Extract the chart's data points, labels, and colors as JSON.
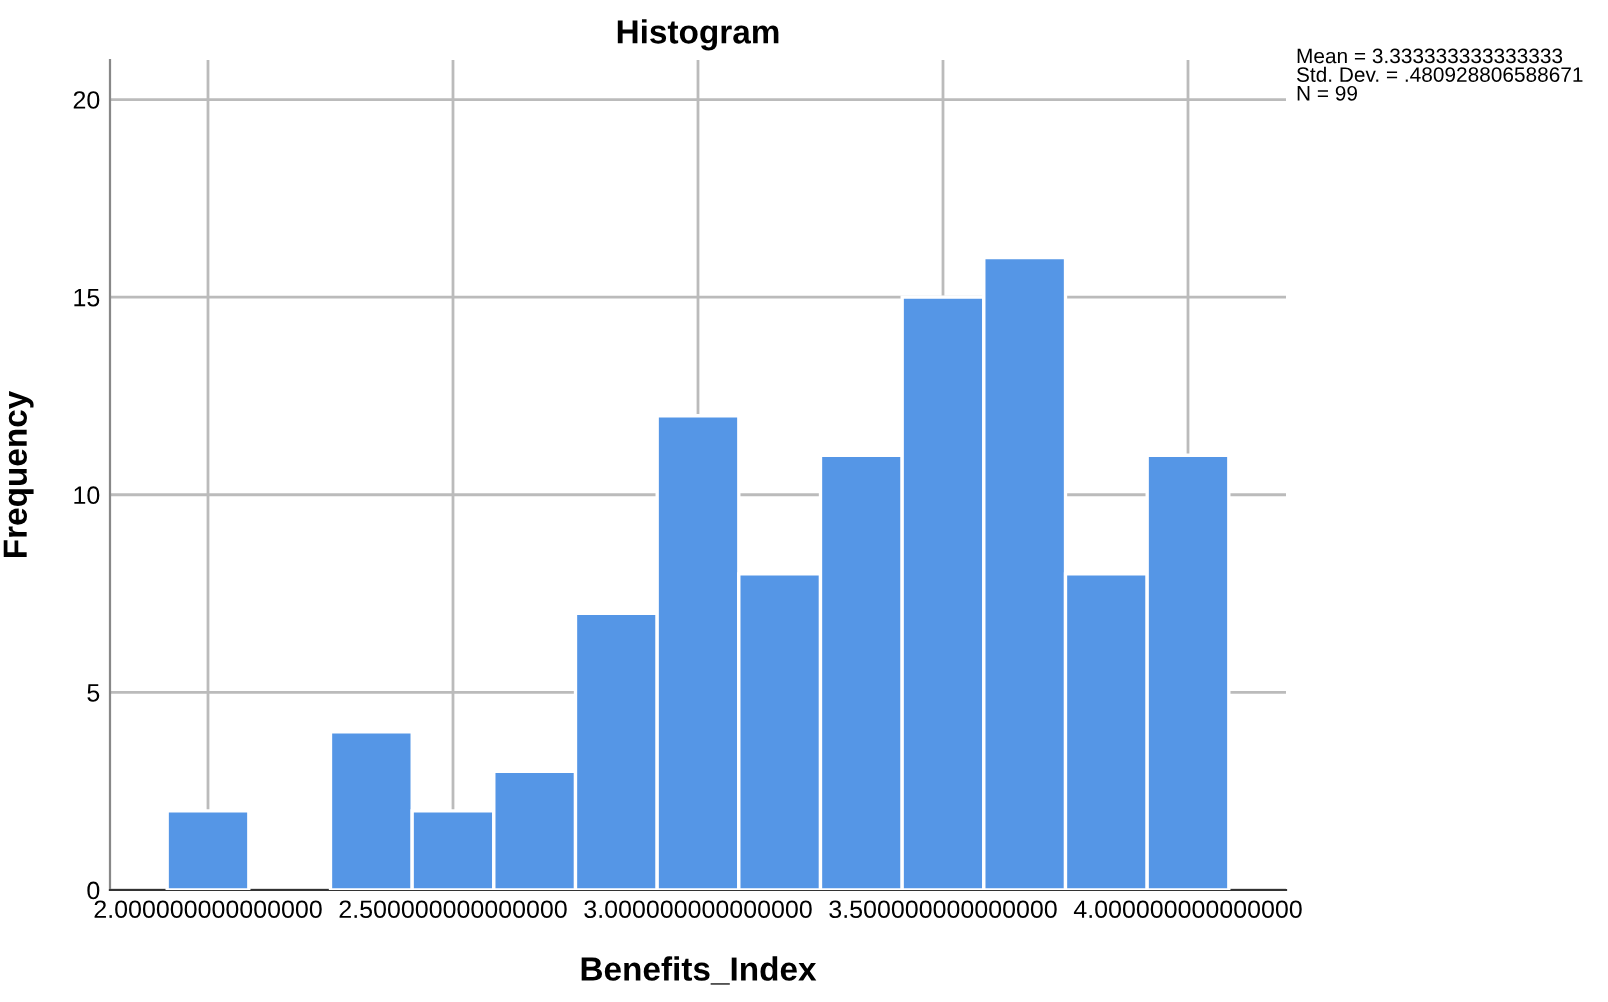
{
  "chart_data": {
    "type": "histogram",
    "title": "Histogram",
    "xlabel": "Benefits_Index",
    "ylabel": "Frequency",
    "bins": [
      1.9167,
      2.0833,
      2.25,
      2.4167,
      2.5833,
      2.75,
      2.9167,
      3.0833,
      3.25,
      3.4167,
      3.5833,
      3.75,
      3.9167,
      4.0833
    ],
    "values": [
      2,
      0,
      4,
      2,
      3,
      7,
      12,
      8,
      11,
      15,
      16,
      8,
      11
    ],
    "color": "#5596e6",
    "xlim": [
      1.8,
      4.2
    ],
    "ylim": [
      0,
      21
    ],
    "xticks": [
      {
        "value": 2.0,
        "label": "2.000000000000000"
      },
      {
        "value": 2.5,
        "label": "2.500000000000000"
      },
      {
        "value": 3.0,
        "label": "3.000000000000000"
      },
      {
        "value": 3.5,
        "label": "3.500000000000000"
      },
      {
        "value": 4.0,
        "label": "4.000000000000000"
      }
    ],
    "yticks": [
      0,
      5,
      10,
      15,
      20
    ],
    "grid": true,
    "annotations": [
      "Mean = 3.333333333333333\nStd. Dev. = .480928806588671\nN = 99"
    ]
  }
}
